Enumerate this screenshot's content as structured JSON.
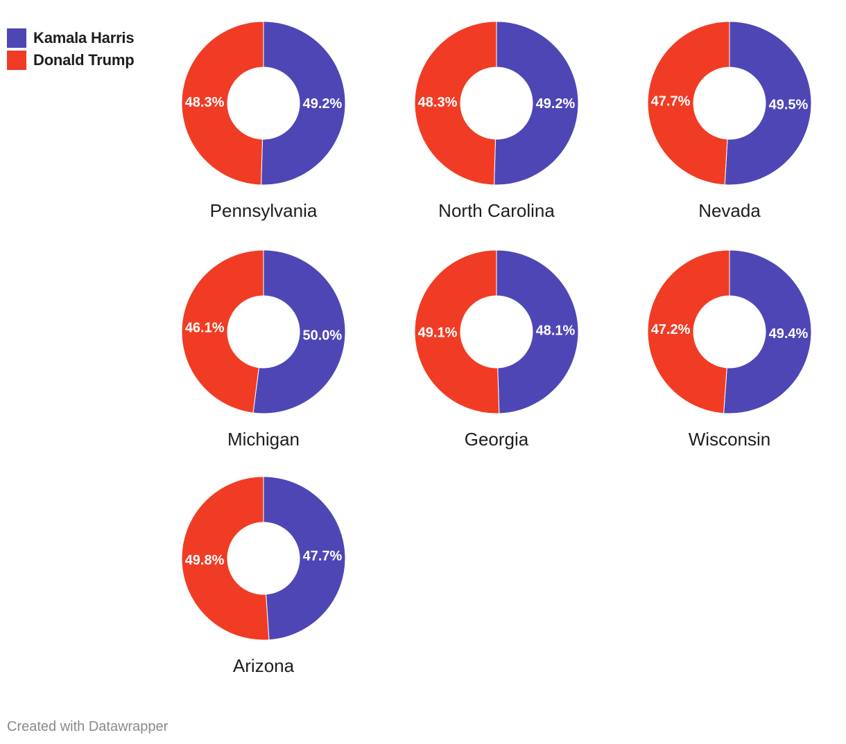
{
  "legend": {
    "items": [
      {
        "label": "Kamala Harris",
        "color": "#4f46b5"
      },
      {
        "label": "Donald Trump",
        "color": "#f03c24"
      }
    ]
  },
  "footer": {
    "credit": "Created with Datawrapper"
  },
  "chart_data": {
    "type": "pie",
    "subtype": "donut",
    "series_names": [
      "Kamala Harris",
      "Donald Trump"
    ],
    "colors": {
      "Kamala Harris": "#4f46b5",
      "Donald Trump": "#f03c24"
    },
    "charts": [
      {
        "title": "Pennsylvania",
        "values": [
          {
            "name": "Kamala Harris",
            "value": 49.2,
            "label": "49.2%"
          },
          {
            "name": "Donald Trump",
            "value": 48.3,
            "label": "48.3%"
          }
        ]
      },
      {
        "title": "North Carolina",
        "values": [
          {
            "name": "Kamala Harris",
            "value": 49.2,
            "label": "49.2%"
          },
          {
            "name": "Donald Trump",
            "value": 48.3,
            "label": "48.3%"
          }
        ]
      },
      {
        "title": "Nevada",
        "values": [
          {
            "name": "Kamala Harris",
            "value": 49.5,
            "label": "49.5%"
          },
          {
            "name": "Donald Trump",
            "value": 47.7,
            "label": "47.7%"
          }
        ]
      },
      {
        "title": "Michigan",
        "values": [
          {
            "name": "Kamala Harris",
            "value": 50.0,
            "label": "50.0%"
          },
          {
            "name": "Donald Trump",
            "value": 46.1,
            "label": "46.1%"
          }
        ]
      },
      {
        "title": "Georgia",
        "values": [
          {
            "name": "Kamala Harris",
            "value": 48.1,
            "label": "48.1%"
          },
          {
            "name": "Donald Trump",
            "value": 49.1,
            "label": "49.1%"
          }
        ]
      },
      {
        "title": "Wisconsin",
        "values": [
          {
            "name": "Kamala Harris",
            "value": 49.4,
            "label": "49.4%"
          },
          {
            "name": "Donald Trump",
            "value": 47.2,
            "label": "47.2%"
          }
        ]
      },
      {
        "title": "Arizona",
        "values": [
          {
            "name": "Kamala Harris",
            "value": 47.7,
            "label": "47.7%"
          },
          {
            "name": "Donald Trump",
            "value": 49.8,
            "label": "49.8%"
          }
        ]
      }
    ]
  }
}
